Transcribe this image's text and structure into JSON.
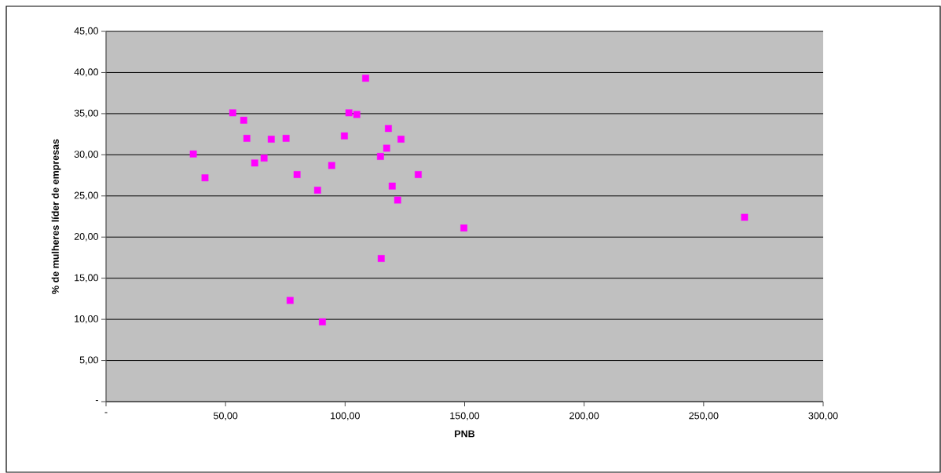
{
  "chart_data": {
    "type": "scatter",
    "xlabel": "PNB",
    "ylabel": "% de mulheres líder de empresas",
    "x": [
      36.5,
      41.4,
      53.0,
      57.6,
      58.9,
      62.2,
      66.1,
      69.1,
      75.3,
      77.0,
      79.9,
      88.5,
      90.5,
      94.4,
      99.7,
      101.6,
      104.9,
      108.6,
      114.8,
      115.1,
      117.4,
      118.1,
      119.7,
      122.0,
      123.4,
      130.6,
      149.7,
      267.1
    ],
    "values": [
      30.1,
      27.2,
      35.1,
      34.2,
      32.0,
      29.0,
      29.6,
      31.9,
      32.0,
      12.3,
      27.6,
      25.7,
      9.7,
      28.7,
      32.3,
      35.1,
      34.9,
      39.3,
      29.8,
      17.4,
      30.8,
      33.2,
      26.2,
      24.5,
      31.9,
      27.6,
      21.1,
      22.4
    ],
    "color": "#ff00ff",
    "marker": "square",
    "grid": "y",
    "xlim": [
      0,
      300
    ],
    "ylim": [
      0,
      45
    ],
    "xticks": [
      {
        "value": 0,
        "label": "-"
      },
      {
        "value": 50,
        "label": "50,00"
      },
      {
        "value": 100,
        "label": "100,00"
      },
      {
        "value": 150,
        "label": "150,00"
      },
      {
        "value": 200,
        "label": "200,00"
      },
      {
        "value": 250,
        "label": "250,00"
      },
      {
        "value": 300,
        "label": "300,00"
      }
    ],
    "yticks": [
      {
        "value": 0,
        "label": "-"
      },
      {
        "value": 5,
        "label": "5,00"
      },
      {
        "value": 10,
        "label": "10,00"
      },
      {
        "value": 15,
        "label": "15,00"
      },
      {
        "value": 20,
        "label": "20,00"
      },
      {
        "value": 25,
        "label": "25,00"
      },
      {
        "value": 30,
        "label": "30,00"
      },
      {
        "value": 35,
        "label": "35,00"
      },
      {
        "value": 40,
        "label": "40,00"
      },
      {
        "value": 45,
        "label": "45,00"
      }
    ]
  }
}
